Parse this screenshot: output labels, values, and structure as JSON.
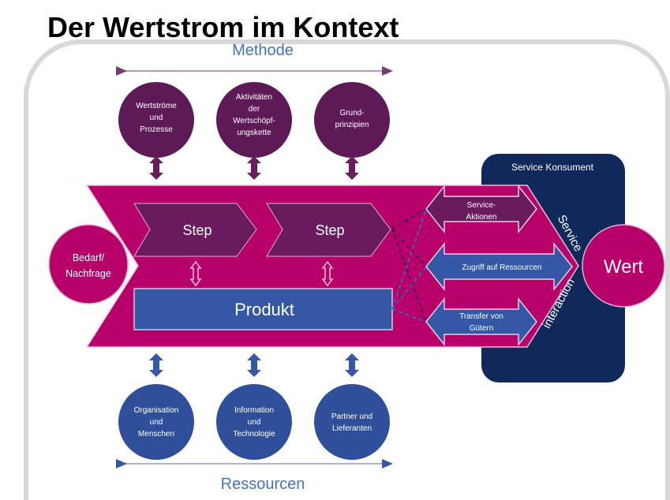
{
  "title": "Der Wertstrom im Kontext",
  "methode_label": "Methode",
  "ressourcen_label": "Ressourcen",
  "methode_items": [
    {
      "lines": [
        "Wertströme",
        "und",
        "Prozesse"
      ]
    },
    {
      "lines": [
        "Aktivitäten",
        "der",
        "Wertschöpf-",
        "ungskette"
      ]
    },
    {
      "lines": [
        "Grund-",
        "prinzipien"
      ]
    }
  ],
  "ressourcen_items": [
    {
      "lines": [
        "Organisation",
        "und",
        "Menschen"
      ]
    },
    {
      "lines": [
        "Information",
        "und",
        "Technologie"
      ]
    },
    {
      "lines": [
        "Partner und",
        "Lieferanten"
      ]
    }
  ],
  "demand": {
    "lines": [
      "Bedarf/",
      "Nachfrage"
    ]
  },
  "steps": [
    "Step",
    "Step"
  ],
  "product": "Produkt",
  "service_consumer": "Service Konsument",
  "interaction_arrows": [
    {
      "lines": [
        "Service-",
        "Aktionen"
      ]
    },
    {
      "lines": [
        "Zugriff auf Ressourcen"
      ]
    },
    {
      "lines": [
        "Transfer von",
        "Gütern"
      ]
    }
  ],
  "service_label": "Service",
  "interaction_label": "interaction",
  "value": "Wert",
  "colors": {
    "magenta": "#b8006a",
    "purple": "#5e1a57",
    "blue": "#3457a6",
    "navy": "#10285a",
    "accent_text": "#4472c4"
  }
}
